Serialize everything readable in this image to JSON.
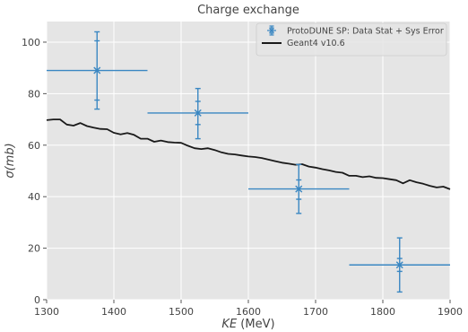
{
  "chart_data": {
    "type": "line",
    "title": "Charge exchange",
    "xlabel_symbol": "KE",
    "xlabel_unit": " (MeV)",
    "ylabel_symbol": "σ",
    "ylabel_unit": "(mb)",
    "xlim": [
      1300,
      1900
    ],
    "ylim": [
      0,
      108
    ],
    "xticks": [
      1300,
      1400,
      1500,
      1600,
      1700,
      1800,
      1900
    ],
    "yticks": [
      0,
      20,
      40,
      60,
      80,
      100
    ],
    "grid": true,
    "legend_position": "top-right",
    "colors": {
      "background": "#e5e5e5",
      "grid": "#ffffff",
      "data": "#3a87c2",
      "model": "#1a1a1a"
    },
    "series": [
      {
        "name": "ProtoDUNE SP: Data Stat + Sys Error",
        "kind": "errorbar",
        "points": [
          {
            "x": 1375,
            "xerr": 75,
            "y": 89,
            "stat_lo": 77.5,
            "stat_hi": 100.5,
            "sys_lo": 74,
            "sys_hi": 104
          },
          {
            "x": 1525,
            "xerr": 75,
            "y": 72.5,
            "stat_lo": 68,
            "stat_hi": 77,
            "sys_lo": 62.5,
            "sys_hi": 82
          },
          {
            "x": 1675,
            "xerr": 75,
            "y": 43,
            "stat_lo": 39,
            "stat_hi": 46.5,
            "sys_lo": 33.5,
            "sys_hi": 52.5
          },
          {
            "x": 1825,
            "xerr": 75,
            "y": 13.5,
            "stat_lo": 11,
            "stat_hi": 16,
            "sys_lo": 3,
            "sys_hi": 24
          }
        ]
      },
      {
        "name": "Geant4 v10.6",
        "kind": "line",
        "x": [
          1300,
          1310,
          1320,
          1330,
          1340,
          1350,
          1360,
          1370,
          1380,
          1390,
          1400,
          1410,
          1420,
          1430,
          1440,
          1450,
          1460,
          1470,
          1480,
          1490,
          1500,
          1510,
          1520,
          1530,
          1540,
          1550,
          1560,
          1570,
          1580,
          1590,
          1600,
          1610,
          1620,
          1630,
          1640,
          1650,
          1660,
          1670,
          1680,
          1690,
          1700,
          1710,
          1720,
          1730,
          1740,
          1750,
          1760,
          1770,
          1780,
          1790,
          1800,
          1810,
          1820,
          1830,
          1840,
          1850,
          1860,
          1870,
          1880,
          1890,
          1900
        ],
        "y": [
          69.7,
          70.0,
          70.0,
          68.0,
          67.6,
          68.6,
          67.4,
          66.8,
          66.3,
          66.2,
          64.8,
          64.2,
          64.7,
          64.0,
          62.5,
          62.5,
          61.3,
          61.8,
          61.2,
          61.0,
          60.9,
          59.8,
          58.8,
          58.5,
          58.8,
          58.1,
          57.2,
          56.6,
          56.4,
          56.0,
          55.6,
          55.4,
          55.0,
          54.4,
          53.8,
          53.2,
          52.8,
          52.4,
          52.6,
          51.7,
          51.3,
          50.7,
          50.2,
          49.6,
          49.3,
          48.1,
          48.1,
          47.6,
          47.9,
          47.3,
          47.2,
          46.8,
          46.4,
          45.2,
          46.4,
          45.6,
          45.0,
          44.2,
          43.6,
          43.9,
          42.9
        ]
      }
    ]
  }
}
